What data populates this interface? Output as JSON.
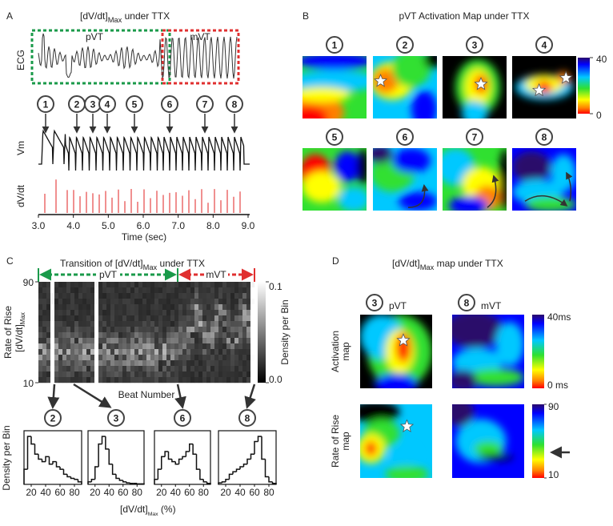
{
  "panel_a": {
    "letter": "A",
    "title": {
      "main": "[dV/dt]",
      "sub": "Max",
      "rest": " under TTX"
    },
    "pvt": "pVT",
    "mvt": "mVT",
    "ecg_label": "ECG",
    "vm_label": "Vm",
    "dvdt_label": "dV/dt",
    "beats": [
      "1",
      "2",
      "3",
      "4",
      "5",
      "6",
      "7",
      "8"
    ],
    "xlim": [
      3,
      9
    ],
    "xticks": [
      {
        "value": 3,
        "label": "3.0"
      },
      {
        "value": 4,
        "label": "4.0"
      },
      {
        "value": 5,
        "label": "5.0"
      },
      {
        "value": 6,
        "label": "6.0"
      },
      {
        "value": 7,
        "label": "7.0"
      },
      {
        "value": 8,
        "label": "8.0"
      },
      {
        "value": 9,
        "label": "9.0"
      }
    ],
    "xlabel": "Time (sec)"
  },
  "panel_b": {
    "letter": "B",
    "title": "pVT Activation Map under TTX",
    "maps": [
      "1",
      "2",
      "3",
      "4",
      "5",
      "6",
      "7",
      "8"
    ],
    "colorbar": {
      "max": 40,
      "min": 0
    }
  },
  "panel_c": {
    "letter": "C",
    "title": {
      "main": "Transition of [dV/dt]",
      "sub": "Max",
      "rest": " under TTX"
    },
    "pvt": "pVT",
    "mvt": "mVT",
    "ylabel": {
      "main": "Rate of Rise",
      "line2": "[dV/dt]",
      "sub": "Max"
    },
    "ylim": [
      10,
      90
    ],
    "yticks": [
      10,
      90
    ],
    "colorbar": {
      "label": "Density per Bin",
      "lim": [
        0,
        0.1
      ],
      "ticks": [
        0.1,
        {
          "value": 0,
          "label": "0.0"
        }
      ]
    },
    "xlabel": "Beat Number",
    "histograms": [
      {
        "number": "2",
        "bins": [
          10,
          15,
          20,
          25,
          30,
          35,
          40,
          45,
          50,
          55,
          60,
          65,
          70,
          75,
          80,
          85,
          90
        ],
        "values": [
          0.3,
          0.95,
          0.8,
          0.6,
          0.5,
          0.45,
          0.55,
          0.4,
          0.45,
          0.35,
          0.3,
          0.2,
          0.15,
          0.12,
          0.1,
          0.05
        ],
        "ylim": [
          0,
          1
        ],
        "xticks": [
          20,
          40,
          60,
          80
        ]
      },
      {
        "number": "3",
        "bins": [
          10,
          15,
          20,
          25,
          30,
          35,
          40,
          45,
          50,
          55,
          60,
          65,
          70,
          75,
          80,
          85,
          90
        ],
        "values": [
          0.05,
          0.1,
          0.35,
          0.8,
          0.95,
          0.7,
          0.4,
          0.2,
          0.12,
          0.08,
          0.05,
          0.03,
          0.02,
          0.02,
          0.01,
          0.01
        ],
        "ylim": [
          0,
          1
        ],
        "xticks": [
          20,
          40,
          60,
          80
        ]
      },
      {
        "number": "6",
        "bins": [
          10,
          15,
          20,
          25,
          30,
          35,
          40,
          45,
          50,
          55,
          60,
          65,
          70,
          75,
          80,
          85,
          90
        ],
        "values": [
          0.1,
          0.3,
          0.55,
          0.65,
          0.5,
          0.45,
          0.4,
          0.5,
          0.55,
          0.65,
          0.8,
          0.6,
          0.3,
          0.1,
          0.05,
          0.02
        ],
        "ylim": [
          0,
          1
        ],
        "xticks": [
          20,
          40,
          60,
          80
        ]
      },
      {
        "number": "8",
        "bins": [
          10,
          15,
          20,
          25,
          30,
          35,
          40,
          45,
          50,
          55,
          60,
          65,
          70,
          75,
          80,
          85,
          90
        ],
        "values": [
          0.03,
          0.05,
          0.1,
          0.2,
          0.25,
          0.3,
          0.35,
          0.4,
          0.5,
          0.6,
          0.85,
          0.95,
          0.5,
          0.15,
          0.05,
          0.02
        ],
        "ylim": [
          0,
          1
        ],
        "xticks": [
          20,
          40,
          60,
          80
        ]
      }
    ],
    "hist_ylabel": "Density per Bin",
    "hist_xlabel": {
      "main": "[dV/dt]",
      "sub": "Max",
      "rest": " (%)"
    }
  },
  "panel_d": {
    "letter": "D",
    "title": {
      "main": "[dV/dt]",
      "sub": "Max",
      "rest": " map under TTX"
    },
    "columns": [
      {
        "number": "3",
        "label": "pVT"
      },
      {
        "number": "8",
        "label": "mVT"
      }
    ],
    "rows": [
      [
        "Activation",
        "map"
      ],
      [
        "Rate of Rise",
        "map"
      ]
    ],
    "activation_colorbar": {
      "max": "40ms",
      "min": "0 ms"
    },
    "rate_colorbar": {
      "max": 90,
      "min": 10
    }
  }
}
